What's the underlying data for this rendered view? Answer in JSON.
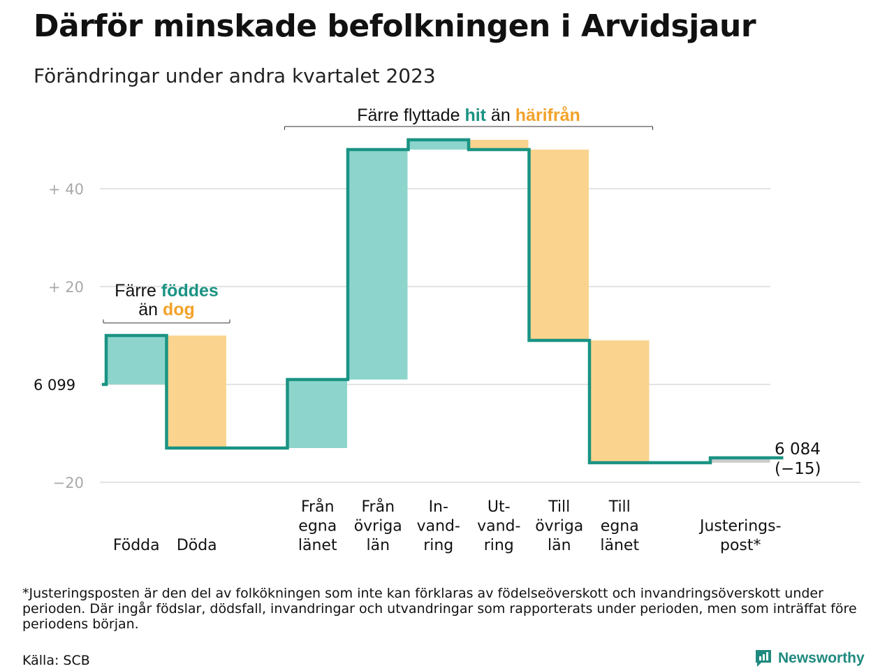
{
  "title": "Därför minskade befolkningen i Arvidsjaur",
  "subtitle": "Förändringar under andra kvartalet 2023",
  "colors": {
    "inflow": "#8dd5cc",
    "outflow": "#fad48e",
    "adjustment": "#cccccc",
    "line": "#1a9383",
    "accent_teal": "#1a9383",
    "accent_orange": "#f2a22a",
    "grid": "#e4e4e4",
    "tick_text": "#a9a9a9"
  },
  "annotations": {
    "births_deaths": {
      "line1_prefix": "Färre ",
      "line1_highlight": "föddes",
      "line2_prefix": "än ",
      "line2_highlight": "dog"
    },
    "migration": {
      "prefix": "Färre flyttade ",
      "highlight1": "hit",
      "middle": " än ",
      "highlight2": "härifrån"
    }
  },
  "end_label": {
    "value": "6 084",
    "change": "(−15)"
  },
  "footnote": "*Justeringsposten är den del av folkökningen som inte kan förklaras av födelseöverskott och invandringsöverskott under perioden. Där ingår födslar, dödsfall, invandringar och utvandringar som rapporterats under perioden, men som inträffat före periodens början.",
  "source": "Källa: SCB",
  "logo": {
    "name": "Newsworthy",
    "icon": "newsworthy-logo-icon"
  },
  "chart_data": {
    "type": "waterfall",
    "start_value": 6099,
    "end_value": 6084,
    "net_change": -15,
    "y_tick_labels": [
      "+  40",
      "+  20",
      "6  099",
      "−20"
    ],
    "y_ticks_relative": [
      40,
      20,
      0,
      -20
    ],
    "ylim_relative": [
      -20,
      50
    ],
    "grid": true,
    "series": [
      {
        "label": "Födda",
        "value": 10,
        "kind": "inflow"
      },
      {
        "label": "Döda",
        "value": -23,
        "kind": "outflow"
      },
      {
        "label": "",
        "value": 0,
        "kind": "spacer"
      },
      {
        "label": "Från egna länet",
        "label_lines": [
          "Från",
          "egna",
          "länet"
        ],
        "value": 14,
        "kind": "inflow"
      },
      {
        "label": "Från övriga län",
        "label_lines": [
          "Från",
          "övriga",
          "län"
        ],
        "value": 47,
        "kind": "inflow"
      },
      {
        "label": "In-vandring",
        "label_lines": [
          "In-",
          "vand-",
          "ring"
        ],
        "value": 2,
        "kind": "inflow"
      },
      {
        "label": "Ut-vandring",
        "label_lines": [
          "Ut-",
          "vand-",
          "ring"
        ],
        "value": -2,
        "kind": "outflow"
      },
      {
        "label": "Till övriga län",
        "label_lines": [
          "Till",
          "övriga",
          "län"
        ],
        "value": -39,
        "kind": "outflow"
      },
      {
        "label": "Till egna länet",
        "label_lines": [
          "Till",
          "egna",
          "länet"
        ],
        "value": -25,
        "kind": "outflow"
      },
      {
        "label": "",
        "value": 0,
        "kind": "spacer"
      },
      {
        "label": "Justeringspost*",
        "label_lines": [
          "Justerings-",
          "post*"
        ],
        "value": 1,
        "kind": "adjustment"
      }
    ]
  }
}
